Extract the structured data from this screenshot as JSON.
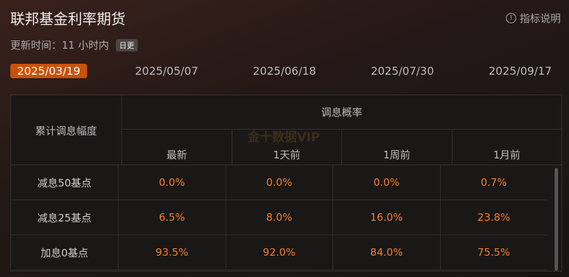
{
  "header": {
    "title": "联邦基金利率期货",
    "help_label": "指标说明",
    "help_icon": "info-circle-icon"
  },
  "update": {
    "text": "更新时间：11 小时内",
    "badge": "日更"
  },
  "dates": [
    "2025/03/19",
    "2025/05/07",
    "2025/06/18",
    "2025/07/30",
    "2025/09/17"
  ],
  "active_date": "2025/03/19",
  "accent": "#c9520a",
  "table": {
    "row_header": "累计调息幅度",
    "group_header": "调息概率",
    "columns": [
      "最新",
      "1天前",
      "1周前",
      "1月前"
    ],
    "watermark": "金十数据VIP",
    "rows": [
      {
        "label": "减息50基点",
        "values": [
          "0.0%",
          "0.0%",
          "0.0%",
          "0.7%"
        ]
      },
      {
        "label": "减息25基点",
        "values": [
          "6.5%",
          "8.0%",
          "16.0%",
          "23.8%"
        ]
      },
      {
        "label": "加息0基点",
        "values": [
          "93.5%",
          "92.0%",
          "84.0%",
          "75.5%"
        ]
      }
    ]
  }
}
